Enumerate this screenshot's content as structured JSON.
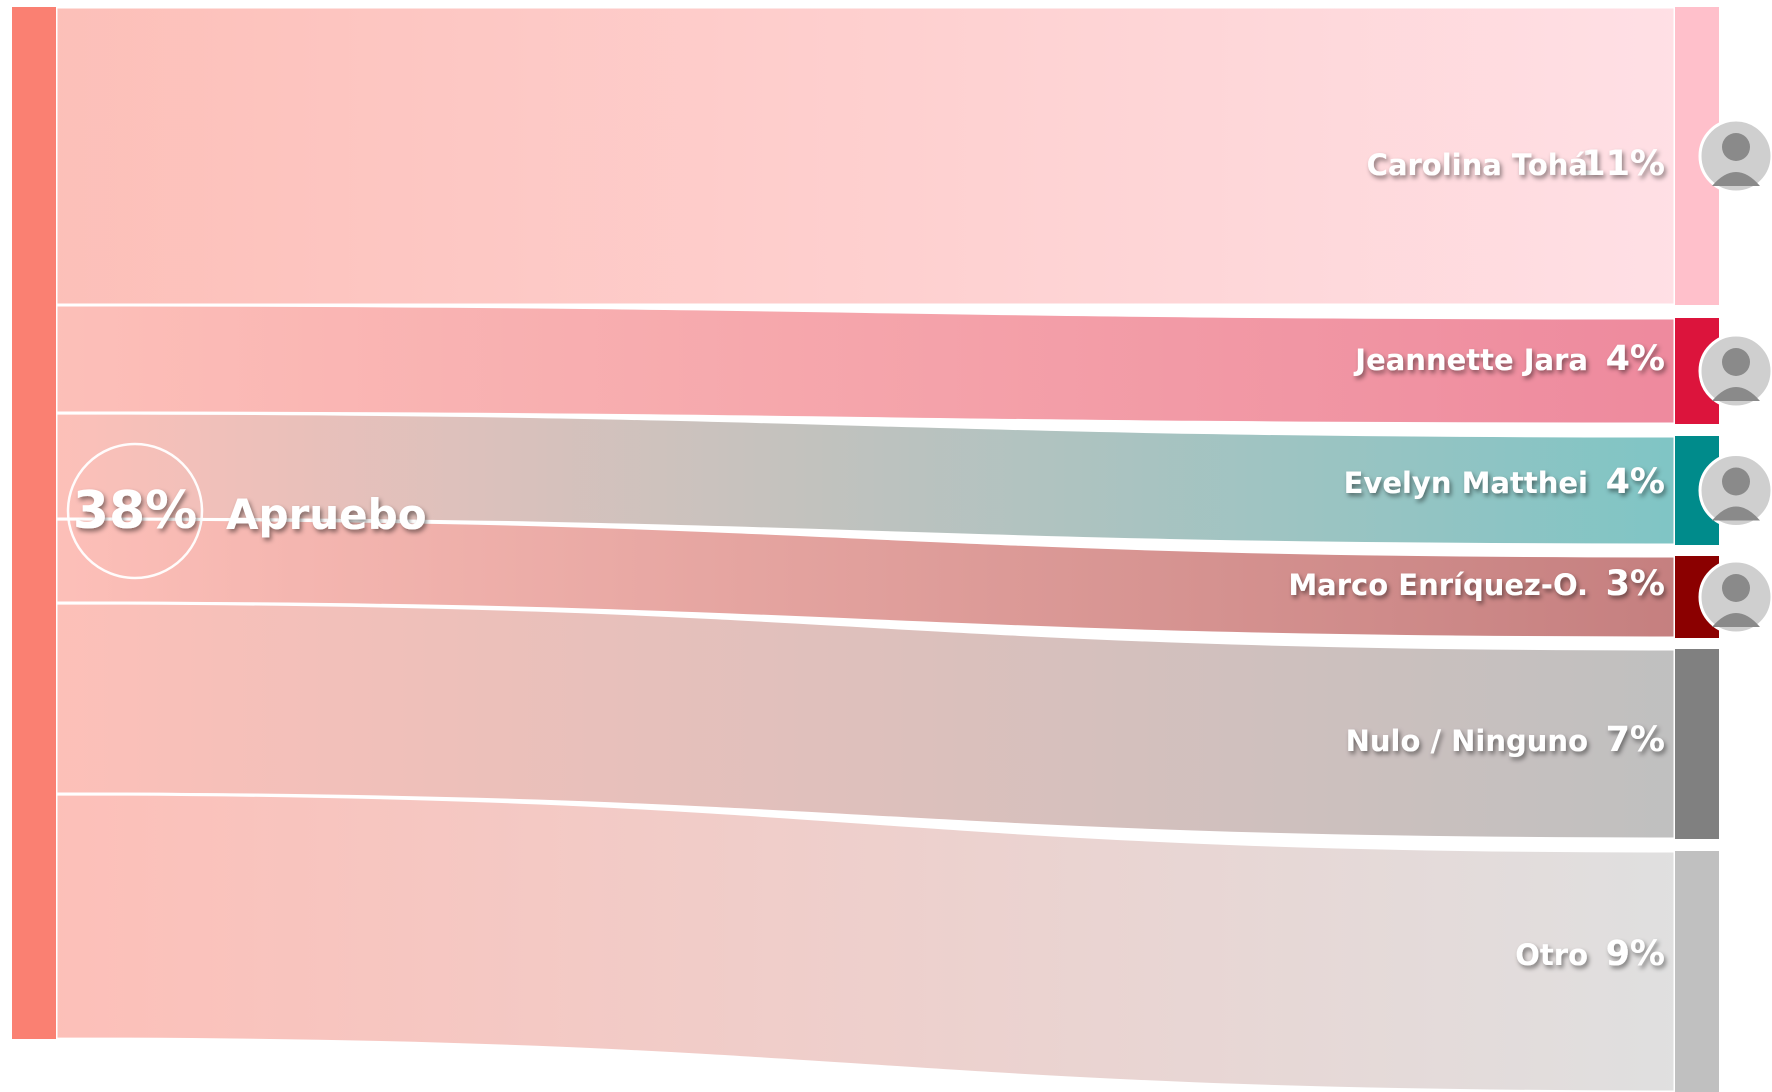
{
  "chart_data": {
    "type": "sankey",
    "source": {
      "label": "Apruebo",
      "value_label": "38%",
      "color": "#FA8072"
    },
    "targets": [
      {
        "name": "Carolina Tohá",
        "value_label": "11%",
        "value": 11,
        "color": "#FFC0CB",
        "avatar": "carolina-toha-portrait"
      },
      {
        "name": "Jeannette Jara",
        "value_label": "4%",
        "value": 4,
        "color": "#DC143C",
        "avatar": "jeannette-jara-portrait"
      },
      {
        "name": "Evelyn Matthei",
        "value_label": "4%",
        "value": 4,
        "color": "#008B8B",
        "avatar": "evelyn-matthei-portrait"
      },
      {
        "name": "Marco Enríquez-O.",
        "value_label": "3%",
        "value": 3,
        "color": "#8B0000",
        "avatar": "marco-enriquez-portrait"
      },
      {
        "name": "Nulo / Ninguno",
        "value_label": "7%",
        "value": 7,
        "color": "#808080"
      },
      {
        "name": "Otro",
        "value_label": "9%",
        "value": 9,
        "color": "#C0C0C0"
      }
    ]
  }
}
